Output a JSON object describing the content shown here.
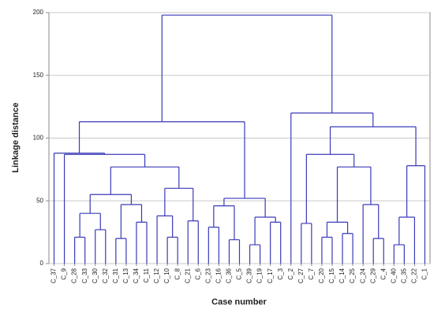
{
  "chart_data": {
    "type": "dendrogram",
    "x_label": "Case number",
    "y_label": "Linkage distance",
    "ylim": [
      0,
      200
    ],
    "yticks": [
      0,
      50,
      100,
      150,
      200
    ],
    "grid": true,
    "color": "#3a3ab8",
    "tree": {
      "height": 198,
      "children": [
        {
          "height": 113,
          "children": [
            {
              "height": 88,
              "children": [
                "C_37",
                {
                  "height": 87,
                  "children": [
                    "C_9",
                    {
                      "height": 77,
                      "children": [
                        {
                          "height": 55,
                          "children": [
                            {
                              "height": 40,
                              "children": [
                                {
                                  "height": 21,
                                  "children": [
                                    "C_28",
                                    "C_33"
                                  ]
                                },
                                {
                                  "height": 27,
                                  "children": [
                                    "C_30",
                                    "C_32"
                                  ]
                                }
                              ]
                            },
                            {
                              "height": 47,
                              "children": [
                                {
                                  "height": 20,
                                  "children": [
                                    "C_31",
                                    "C_13"
                                  ]
                                },
                                {
                                  "height": 33,
                                  "children": [
                                    "C_34",
                                    "C_11"
                                  ]
                                }
                              ]
                            }
                          ]
                        },
                        {
                          "height": 60,
                          "children": [
                            {
                              "height": 38,
                              "children": [
                                "C_12",
                                {
                                  "height": 21,
                                  "children": [
                                    "C_10",
                                    "C_8"
                                  ]
                                }
                              ]
                            },
                            {
                              "height": 34,
                              "children": [
                                "C_21",
                                "C_6"
                              ]
                            }
                          ]
                        }
                      ]
                    }
                  ]
                }
              ]
            },
            {
              "height": 52,
              "children": [
                {
                  "height": 46,
                  "children": [
                    {
                      "height": 29,
                      "children": [
                        "C_23",
                        "C_16"
                      ]
                    },
                    {
                      "height": 19,
                      "children": [
                        "C_36",
                        "C_5"
                      ]
                    }
                  ]
                },
                {
                  "height": 37,
                  "children": [
                    {
                      "height": 15,
                      "children": [
                        "C_39",
                        "C_19"
                      ]
                    },
                    {
                      "height": 33,
                      "children": [
                        "C_17",
                        "C_3"
                      ]
                    }
                  ]
                }
              ]
            }
          ]
        },
        {
          "height": 120,
          "children": [
            "C_2",
            {
              "height": 109,
              "children": [
                {
                  "height": 87,
                  "children": [
                    {
                      "height": 32,
                      "children": [
                        "C_27",
                        "C_7"
                      ]
                    },
                    {
                      "height": 77,
                      "children": [
                        {
                          "height": 33,
                          "children": [
                            {
                              "height": 21,
                              "children": [
                                "C_20",
                                "C_15"
                              ]
                            },
                            {
                              "height": 24,
                              "children": [
                                "C_14",
                                "C_25"
                              ]
                            }
                          ]
                        },
                        {
                          "height": 47,
                          "children": [
                            "C_24",
                            {
                              "height": 20,
                              "children": [
                                "C_29",
                                "C_4"
                              ]
                            }
                          ]
                        }
                      ]
                    }
                  ]
                },
                {
                  "height": 78,
                  "children": [
                    {
                      "height": 37,
                      "children": [
                        {
                          "height": 15,
                          "children": [
                            "C_40",
                            "C_35"
                          ]
                        },
                        "C_22"
                      ]
                    },
                    "C_1"
                  ]
                }
              ]
            }
          ]
        }
      ]
    }
  }
}
